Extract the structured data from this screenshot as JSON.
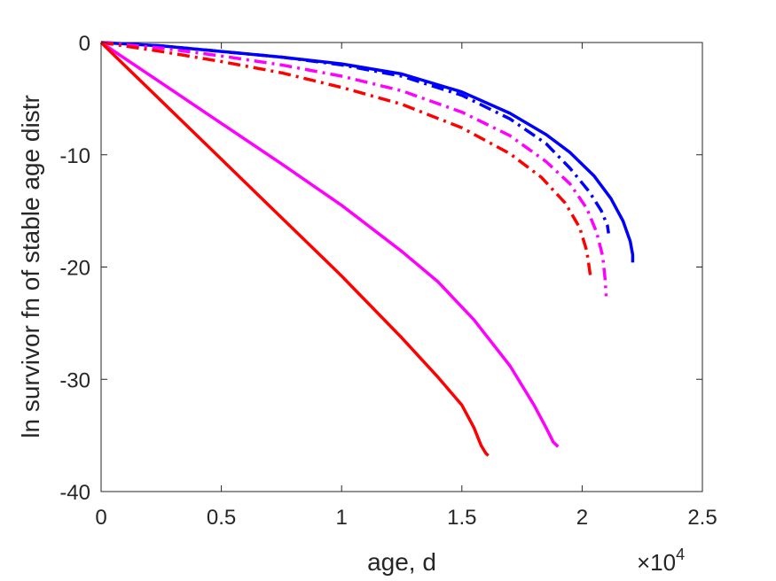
{
  "chart_data": {
    "type": "line",
    "title": "",
    "xlabel": "age, d",
    "ylabel": "ln survivor fn of stable age distr",
    "xlim": [
      0,
      25000
    ],
    "ylim": [
      -40,
      0
    ],
    "x_ticks": [
      0,
      5000,
      10000,
      15000,
      20000,
      25000
    ],
    "x_tick_labels": [
      "0",
      "0.5",
      "1",
      "1.5",
      "2",
      "2.5"
    ],
    "x_multiplier": {
      "base": "×10",
      "exponent": "4"
    },
    "y_ticks": [
      0,
      -10,
      -20,
      -30,
      -40
    ],
    "y_tick_labels": [
      "0",
      "-10",
      "-20",
      "-30",
      "-40"
    ],
    "grid": false,
    "series": [
      {
        "color": "#0000ff",
        "style": "solid",
        "x": [
          0,
          2500,
          5000,
          7500,
          10000,
          12500,
          15000,
          17000,
          18500,
          19500,
          20500,
          21200,
          21700,
          22000,
          22100,
          22100
        ],
        "y": [
          0,
          -0.3,
          -0.8,
          -1.3,
          -1.9,
          -2.8,
          -4.4,
          -6.3,
          -8.2,
          -9.8,
          -11.9,
          -13.9,
          -15.9,
          -17.7,
          -18.9,
          -19.6
        ]
      },
      {
        "color": "#0000ff",
        "style": "dashdot",
        "x": [
          0,
          2500,
          5000,
          7500,
          10000,
          12500,
          15000,
          17000,
          18500,
          19500,
          20300,
          20800,
          21050,
          21100
        ],
        "y": [
          0,
          -0.3,
          -0.8,
          -1.3,
          -2.0,
          -3.0,
          -4.7,
          -6.8,
          -9.0,
          -11.2,
          -13.3,
          -15.0,
          -16.3,
          -17.0
        ]
      },
      {
        "color": "#ff00ff",
        "style": "dashdot",
        "x": [
          0,
          2500,
          5000,
          7500,
          10000,
          12500,
          15000,
          17000,
          18500,
          19500,
          20200,
          20600,
          20850,
          20950,
          21000
        ],
        "y": [
          0,
          -0.5,
          -1.2,
          -2.0,
          -3.0,
          -4.3,
          -6.2,
          -8.3,
          -10.6,
          -12.6,
          -14.8,
          -16.9,
          -19.0,
          -21.0,
          -22.6
        ]
      },
      {
        "color": "#ff0000",
        "style": "dashdot",
        "x": [
          0,
          2500,
          5000,
          7500,
          10000,
          12500,
          15000,
          17000,
          18300,
          19300,
          19900,
          20200,
          20350
        ],
        "y": [
          0,
          -0.8,
          -1.7,
          -2.7,
          -4.0,
          -5.5,
          -7.6,
          -9.9,
          -12.0,
          -14.3,
          -16.5,
          -18.6,
          -20.9
        ]
      },
      {
        "color": "#ff00ff",
        "style": "solid",
        "x": [
          0,
          2500,
          5000,
          7500,
          10000,
          12500,
          14000,
          15500,
          17000,
          18000,
          18500,
          18800,
          19000
        ],
        "y": [
          0,
          -3.6,
          -7.2,
          -10.8,
          -14.5,
          -18.6,
          -21.3,
          -24.7,
          -28.8,
          -32.3,
          -34.3,
          -35.6,
          -36.0
        ]
      },
      {
        "color": "#ff0000",
        "style": "solid",
        "x": [
          0,
          2500,
          5000,
          7500,
          10000,
          12500,
          14000,
          15000,
          15500,
          15800,
          16000,
          16100
        ],
        "y": [
          0,
          -5.2,
          -10.4,
          -15.6,
          -20.8,
          -26.3,
          -29.8,
          -32.3,
          -34.3,
          -35.9,
          -36.6,
          -36.8
        ]
      }
    ]
  }
}
